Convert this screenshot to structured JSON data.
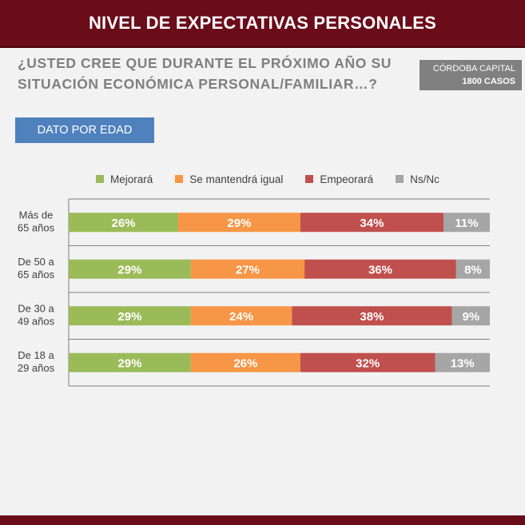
{
  "header": {
    "title": "NIVEL DE EXPECTATIVAS PERSONALES"
  },
  "question": {
    "line1": "¿USTED CREE QUE DURANTE EL PRÓXIMO AÑO SU",
    "line2": "SITUACIÓN ECONÓMICA PERSONAL/FAMILIAR…?"
  },
  "sample": {
    "city": "CÓRDOBA CAPITAL",
    "cases": "1800 CASOS"
  },
  "filter_button": {
    "label": "DATO POR EDAD"
  },
  "colors": {
    "mejorara": "#9bbb59",
    "igual": "#f79646",
    "empeorara": "#c0504d",
    "nsnc": "#a6a6a6",
    "header": "#6b0c1a",
    "button": "#4f81bd"
  },
  "chart_data": {
    "type": "bar",
    "orientation": "horizontal",
    "stacked": true,
    "normalized": true,
    "legend_position": "top",
    "categories": [
      [
        "Más de",
        "65 años"
      ],
      [
        "De 50 a",
        "65 años"
      ],
      [
        "De 30 a",
        "49 años"
      ],
      [
        "De 18 a",
        "29 años"
      ]
    ],
    "series": [
      {
        "name": "Mejorará",
        "color_key": "mejorara",
        "values": [
          26,
          29,
          29,
          29
        ]
      },
      {
        "name": "Se mantendrá igual",
        "color_key": "igual",
        "values": [
          29,
          27,
          24,
          26
        ]
      },
      {
        "name": "Empeorará",
        "color_key": "empeorara",
        "values": [
          34,
          36,
          38,
          32
        ]
      },
      {
        "name": "Ns/Nc",
        "color_key": "nsnc",
        "values": [
          11,
          8,
          9,
          13
        ]
      }
    ],
    "value_suffix": "%"
  }
}
